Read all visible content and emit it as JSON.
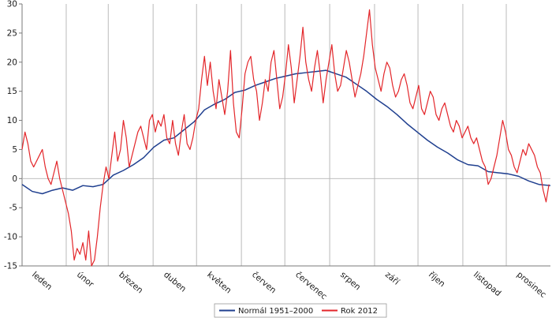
{
  "chart_data": {
    "type": "line",
    "title": "",
    "xlabel": "",
    "ylabel": "",
    "ylim": [
      -15,
      30
    ],
    "y_ticks": [
      -15,
      -10,
      -5,
      0,
      5,
      10,
      15,
      20,
      25,
      30
    ],
    "grid": "vertical month separators only",
    "categories": [
      "leden",
      "únor",
      "březen",
      "duben",
      "květen",
      "červen",
      "červenec",
      "srpen",
      "září",
      "říjen",
      "listopad",
      "prosinec"
    ],
    "month_days": [
      31,
      29,
      31,
      30,
      31,
      30,
      31,
      31,
      30,
      31,
      30,
      31
    ],
    "legend_position": "bottom-center",
    "series": [
      {
        "name": "Normál 1951–2000",
        "color": "#1f3f8f",
        "x": [
          1,
          8,
          15,
          22,
          29,
          36,
          43,
          50,
          57,
          64,
          71,
          78,
          85,
          92,
          99,
          106,
          113,
          120,
          127,
          134,
          141,
          148,
          155,
          162,
          169,
          176,
          183,
          190,
          197,
          204,
          211,
          218,
          225,
          232,
          239,
          246,
          253,
          260,
          267,
          274,
          281,
          288,
          295,
          302,
          309,
          316,
          323,
          330,
          337,
          344,
          351,
          358,
          366
        ],
        "values": [
          -1.0,
          -2.2,
          -2.6,
          -2.0,
          -1.6,
          -2.0,
          -1.2,
          -1.4,
          -1.0,
          0.6,
          1.4,
          2.4,
          3.6,
          5.4,
          6.6,
          7.0,
          8.4,
          9.8,
          11.8,
          12.8,
          13.6,
          14.8,
          15.2,
          16.0,
          16.6,
          17.2,
          17.6,
          18.0,
          18.2,
          18.4,
          18.6,
          18.0,
          17.4,
          16.2,
          15.0,
          13.6,
          12.4,
          11.0,
          9.4,
          8.0,
          6.6,
          5.4,
          4.4,
          3.2,
          2.4,
          2.2,
          1.2,
          1.0,
          0.8,
          0.4,
          -0.4,
          -1.0,
          -1.2
        ]
      },
      {
        "name": "Rok 2012",
        "color": "#e3262a",
        "x": [
          1,
          3,
          5,
          7,
          9,
          11,
          13,
          15,
          17,
          19,
          21,
          23,
          25,
          27,
          29,
          31,
          33,
          35,
          37,
          39,
          41,
          43,
          45,
          47,
          49,
          51,
          53,
          55,
          57,
          59,
          61,
          63,
          65,
          67,
          69,
          71,
          73,
          75,
          77,
          79,
          81,
          83,
          85,
          87,
          89,
          91,
          93,
          95,
          97,
          99,
          101,
          103,
          105,
          107,
          109,
          111,
          113,
          115,
          117,
          119,
          121,
          123,
          125,
          127,
          129,
          131,
          133,
          135,
          137,
          139,
          141,
          143,
          145,
          147,
          149,
          151,
          153,
          155,
          157,
          159,
          161,
          163,
          165,
          167,
          169,
          171,
          173,
          175,
          177,
          179,
          181,
          183,
          185,
          187,
          189,
          191,
          193,
          195,
          197,
          199,
          201,
          203,
          205,
          207,
          209,
          211,
          213,
          215,
          217,
          219,
          221,
          223,
          225,
          227,
          229,
          231,
          233,
          235,
          237,
          239,
          241,
          243,
          245,
          247,
          249,
          251,
          253,
          255,
          257,
          259,
          261,
          263,
          265,
          267,
          269,
          271,
          273,
          275,
          277,
          279,
          281,
          283,
          285,
          287,
          289,
          291,
          293,
          295,
          297,
          299,
          301,
          303,
          305,
          307,
          309,
          311,
          313,
          315,
          317,
          319,
          321,
          323,
          325,
          327,
          329,
          331,
          333,
          335,
          337,
          339,
          341,
          343,
          345,
          347,
          349,
          351,
          353,
          355,
          357,
          359,
          361,
          363,
          365
        ],
        "values": [
          5,
          8,
          6,
          3,
          2,
          3,
          4,
          5,
          2,
          0,
          -1,
          1,
          3,
          0,
          -2,
          -4,
          -6,
          -9,
          -14,
          -12,
          -13,
          -11,
          -14,
          -9,
          -15,
          -14,
          -10,
          -5,
          -1,
          2,
          0,
          4,
          8,
          3,
          5,
          10,
          7,
          2,
          4,
          6,
          8,
          9,
          7,
          5,
          10,
          11,
          8,
          10,
          9,
          11,
          7,
          6,
          10,
          6,
          4,
          8,
          11,
          6,
          5,
          7,
          10,
          12,
          17,
          21,
          16,
          20,
          15,
          12,
          17,
          14,
          11,
          15,
          22,
          13,
          8,
          7,
          12,
          18,
          20,
          21,
          17,
          15,
          10,
          13,
          17,
          15,
          20,
          22,
          17,
          12,
          14,
          18,
          23,
          19,
          13,
          17,
          21,
          26,
          20,
          17,
          15,
          19,
          22,
          18,
          13,
          17,
          20,
          23,
          18,
          15,
          16,
          19,
          22,
          20,
          17,
          14,
          16,
          18,
          21,
          25,
          29,
          23,
          19,
          17,
          15,
          18,
          20,
          19,
          16,
          14,
          15,
          17,
          18,
          16,
          13,
          12,
          14,
          16,
          12,
          11,
          13,
          15,
          14,
          11,
          10,
          12,
          13,
          11,
          9,
          8,
          10,
          9,
          7,
          8,
          9,
          7,
          6,
          7,
          5,
          3,
          2,
          -1,
          0,
          2,
          4,
          7,
          10,
          8,
          5,
          4,
          2,
          1,
          3,
          5,
          4,
          6,
          5,
          4,
          2,
          1,
          -2,
          -4,
          -1
        ]
      }
    ]
  }
}
